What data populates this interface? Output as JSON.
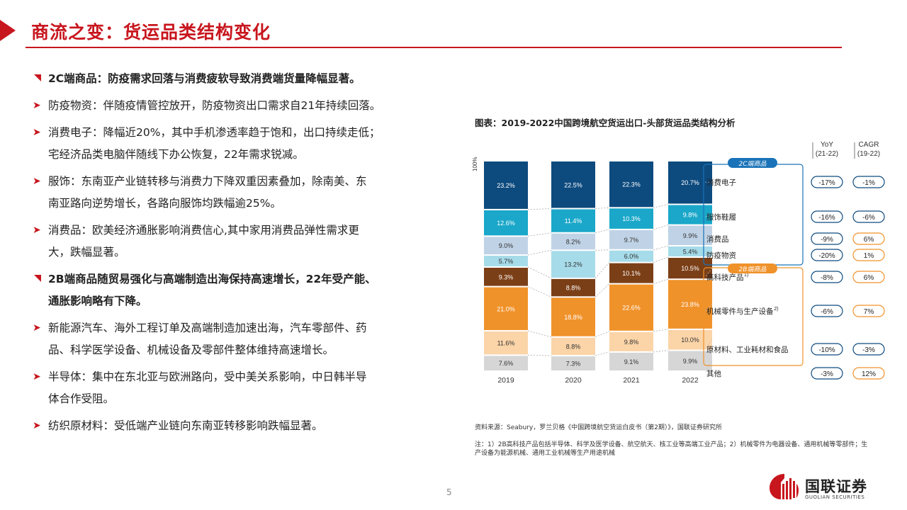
{
  "header": {
    "title": "商流之变：货运品类结构变化"
  },
  "left": {
    "section1_head": "2C端商品：防疫需求回落与消费疲软导致消费端货量降幅显著。",
    "section1_bullets": [
      [
        "防疫物资：伴随疫情管控放开，防疫物资出口需求自21年持续回落。"
      ],
      [
        "消费电子：降幅近20%，其中手机渗透率趋于饱和，出口持续走低；",
        "宅经济品类电脑伴随线下办公恢复，22年需求锐减。"
      ],
      [
        "服饰：东南亚产业链转移与消费力下降双重因素叠加，除南美、东",
        "南亚路向逆势增长，各路向服饰均跌幅逾25%。"
      ],
      [
        "消费品：欧美经济通胀影响消费信心,其中家用消费品弹性需求更",
        "大，跌幅显著。"
      ]
    ],
    "section2_head": [
      "2B端商品随贸易强化与高端制造出海保持高速增长，22年受产能、",
      "通胀影响略有下降。"
    ],
    "section2_bullets": [
      [
        "新能源汽车、海外工程订单及高端制造加速出海，汽车零部件、药",
        "品、科学医学设备、机械设备及零部件整体维持高速增长。"
      ],
      [
        "半导体：集中在东北亚与欧洲路向，受中美关系影响，中日韩半导",
        "体合作受阻。"
      ],
      [
        "纺织原材料：受低端产业链向东南亚转移影响跌幅显著。"
      ]
    ],
    "bullet_arrow": "➤"
  },
  "chart_title": "图表：2019-2022中国跨境航空货运出口-头部货运品类结构分析",
  "chart_data": {
    "type": "bar",
    "stacked": true,
    "ylim": [
      0,
      100
    ],
    "y_axis_label": "100%",
    "categories": [
      "2019",
      "2020",
      "2021",
      "2022"
    ],
    "series": [
      {
        "name": "其他",
        "color": "#d6d6d6",
        "values": [
          7.6,
          7.3,
          9.1,
          9.9
        ]
      },
      {
        "name": "原材料、工业耗材和食品",
        "color": "#fbd4a8",
        "values": [
          11.6,
          8.8,
          9.8,
          10.0
        ]
      },
      {
        "name": "机械零件与生产设备",
        "color": "#f0922a",
        "values": [
          21.0,
          18.8,
          22.6,
          23.8
        ]
      },
      {
        "name": "高科技产品",
        "color": "#7b3f17",
        "values": [
          9.3,
          8.8,
          10.1,
          10.5
        ]
      },
      {
        "name": "防疫物资",
        "color": "#a6dbe9",
        "values": [
          5.7,
          13.2,
          6.0,
          5.4
        ]
      },
      {
        "name": "消费品",
        "color": "#c0d3e6",
        "values": [
          9.0,
          8.2,
          9.7,
          9.9
        ]
      },
      {
        "name": "服饰鞋履",
        "color": "#1aa7c9",
        "values": [
          12.6,
          11.4,
          10.3,
          9.8
        ]
      },
      {
        "name": "消费电子",
        "color": "#0d4a7e",
        "values": [
          23.2,
          22.5,
          22.3,
          20.7
        ]
      }
    ],
    "value_labels": [
      [
        "7.6%",
        "7.3%",
        "9.1%",
        "9.9%"
      ],
      [
        "11.6%",
        "8.8%",
        "9.8%",
        "10.0%"
      ],
      [
        "21.0%",
        "18.8%",
        "22.6%",
        "23.8%"
      ],
      [
        "9.3%",
        "8.8%",
        "10.1%",
        "10.5%"
      ],
      [
        "5.7%",
        "13.2%",
        "6.0%",
        "5.4%"
      ],
      [
        "9.0%",
        "8.2%",
        "9.7%",
        "9.9%"
      ],
      [
        "12.6%",
        "11.4%",
        "10.3%",
        "9.8%"
      ],
      [
        "23.2%",
        "22.5%",
        "22.3%",
        "20.7%"
      ]
    ],
    "group_2c_label": "2C端商品",
    "group_2b_label": "2B端商品",
    "category_labels": [
      {
        "text": "其他",
        "sup": ""
      },
      {
        "text": "原材料、工业耗材和食品",
        "sup": ""
      },
      {
        "text": "机械零件与生产设备",
        "sup": "2)"
      },
      {
        "text": "高科技产品",
        "sup": "1)"
      },
      {
        "text": "防疫物资",
        "sup": ""
      },
      {
        "text": "消费品",
        "sup": ""
      },
      {
        "text": "服饰鞋履",
        "sup": ""
      },
      {
        "text": "消费电子",
        "sup": ""
      }
    ],
    "yoy_header": [
      "YoY",
      "(21-22)"
    ],
    "cagr_header": [
      "CAGR",
      "(19-22)"
    ],
    "yoy": [
      "-3%",
      "-10%",
      "-6%",
      "-8%",
      "-20%",
      "-9%",
      "-16%",
      "-17%"
    ],
    "cagr": [
      "12%",
      "-3%",
      "7%",
      "6%",
      "1%",
      "6%",
      "-6%",
      "-1%"
    ],
    "colors": {
      "blue_group": "#1a73b8",
      "orange_group": "#f0922a",
      "neg": "#0d4a7e",
      "pos": "#f0922a"
    }
  },
  "source_note": "资料来源：Seabury，罗兰贝格《中国跨境航空货运白皮书（第2期）》，国联证券研究所",
  "footnote": "注：1）2B高科技产品包括半导体、科学及医学设备、航空航天、核工业等高端工业产品；2）机械零件为电器设备、通用机械等零部件；生产设备为能源机械、通用工业机械等生产用途机械",
  "page_number": "5",
  "logo": {
    "name": "国联证券",
    "sub": "GUOLIAN SECURITIES"
  }
}
